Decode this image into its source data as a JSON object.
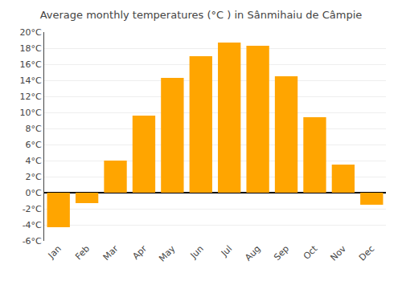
{
  "chart_data": {
    "type": "bar",
    "title": "Average monthly temperatures (°C ) in Sânmihaiu de Câmpie",
    "categories": [
      "Jan",
      "Feb",
      "Mar",
      "Apr",
      "May",
      "Jun",
      "Jul",
      "Aug",
      "Sep",
      "Oct",
      "Nov",
      "Dec"
    ],
    "values": [
      -4.3,
      -1.3,
      4.0,
      9.6,
      14.3,
      17.0,
      18.7,
      18.3,
      14.5,
      9.4,
      3.5,
      -1.5
    ],
    "color": "#FFA500",
    "ylim": [
      -6,
      20
    ],
    "yticks": [
      {
        "value": -6,
        "label": "-6°C"
      },
      {
        "value": -4,
        "label": "-4°C"
      },
      {
        "value": -2,
        "label": "-2°C"
      },
      {
        "value": 0,
        "label": "0°C"
      },
      {
        "value": 2,
        "label": "2°C"
      },
      {
        "value": 4,
        "label": "4°C"
      },
      {
        "value": 6,
        "label": "6°C"
      },
      {
        "value": 8,
        "label": "8°C"
      },
      {
        "value": 10,
        "label": "10°C"
      },
      {
        "value": 12,
        "label": "12°C"
      },
      {
        "value": 14,
        "label": "14°C"
      },
      {
        "value": 16,
        "label": "16°C"
      },
      {
        "value": 18,
        "label": "18°C"
      },
      {
        "value": 20,
        "label": "20°C"
      }
    ],
    "grid": true
  }
}
